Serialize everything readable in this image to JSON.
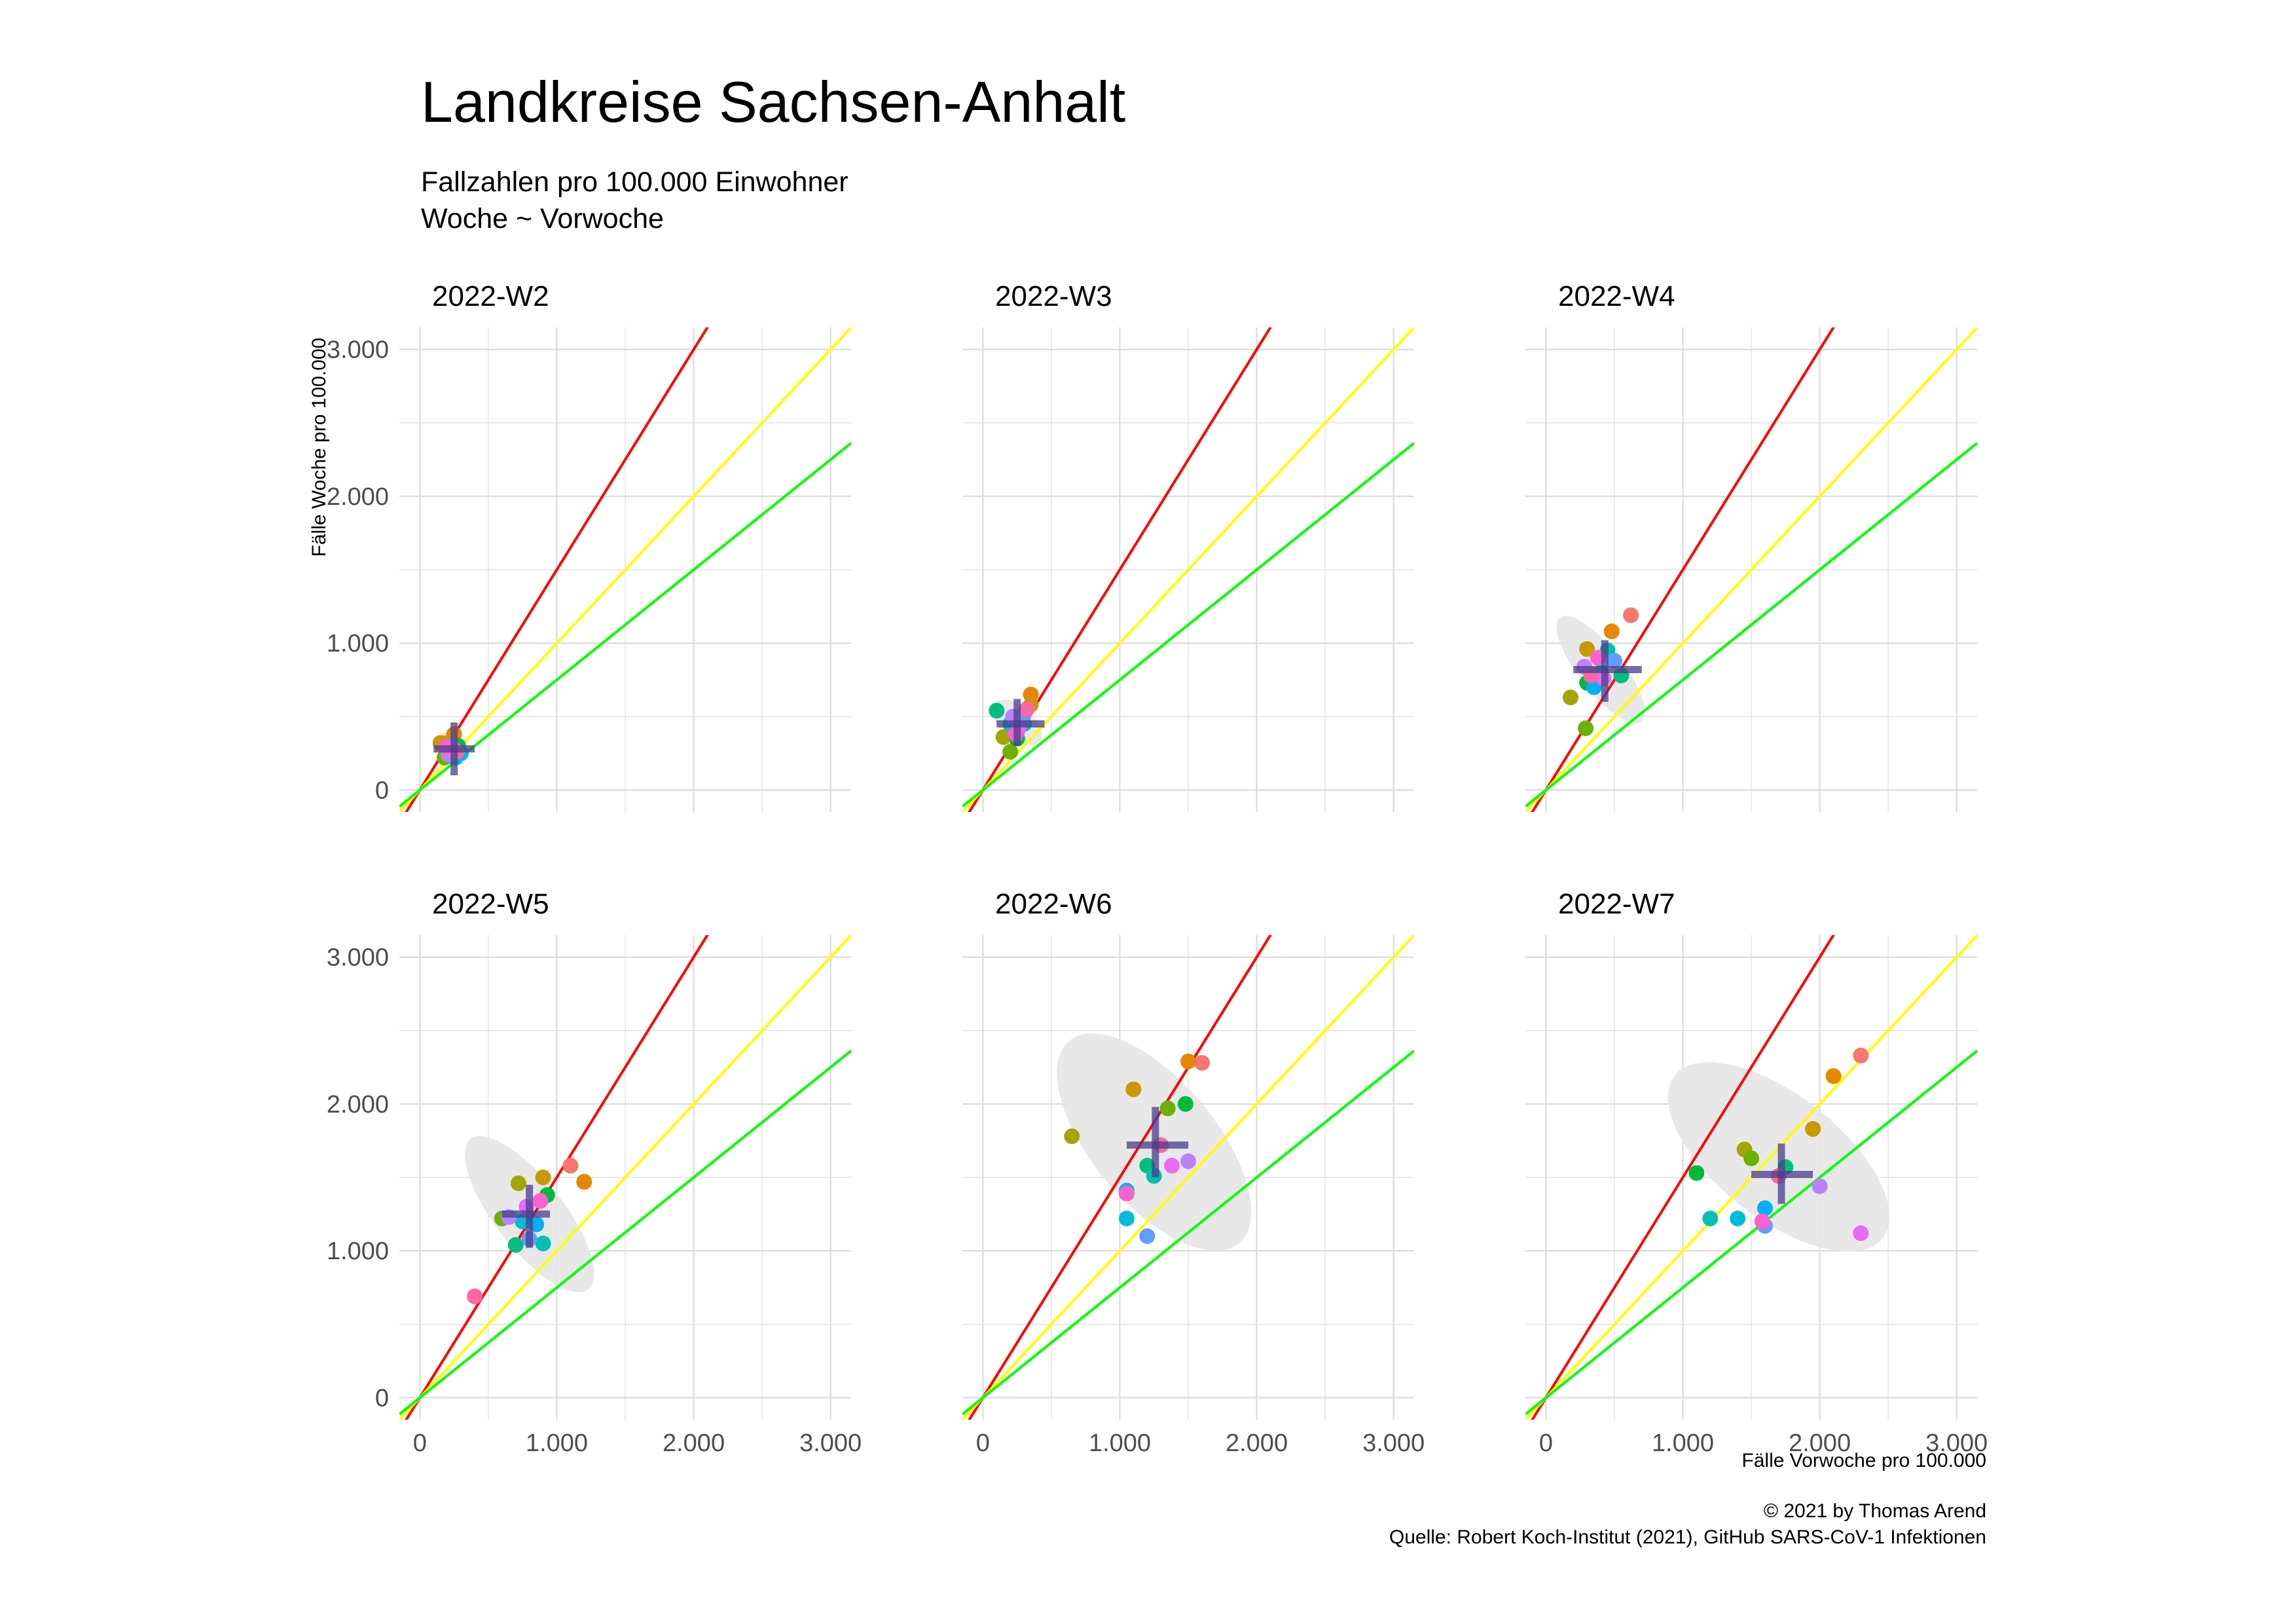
{
  "title": "Landkreise Sachsen-Anhalt",
  "subtitle": [
    "Fallzahlen pro 100.000 Einwohner",
    "Woche ~ Vorwoche"
  ],
  "caption": [
    "© 2021 by Thomas Arend",
    "Quelle: Robert Koch-Institut (2021), GitHub SARS-CoV-1 Infektionen"
  ],
  "colors": {
    "red_line": "#ff0000",
    "yellow_line": "#ffff00",
    "green_line": "#00ff00",
    "cross": "#483d8b",
    "ellipse": "#e6e6e6",
    "grid": "#dcdcdc",
    "points": [
      "#f8766d",
      "#e58700",
      "#c99800",
      "#a3a500",
      "#6bb100",
      "#00ba38",
      "#00bf7d",
      "#00c0af",
      "#00bcd8",
      "#00b0f6",
      "#619cff",
      "#b983ff",
      "#e76bf3",
      "#fd61d1",
      "#ff67a4"
    ]
  },
  "chart_data": {
    "type": "scatter",
    "xlabel": "Fälle Vorwoche pro 100.000",
    "ylabel": "Fälle Woche pro 100.000",
    "xlim": [
      -150,
      3150
    ],
    "ylim": [
      -150,
      3150
    ],
    "x_ticks": [
      0,
      1000,
      2000,
      3000
    ],
    "x_tick_labels": [
      "0",
      "1.000",
      "2.000",
      "3.000"
    ],
    "y_ticks": [
      0,
      1000,
      2000,
      3000
    ],
    "y_tick_labels": [
      "0",
      "1.000",
      "2.000",
      "3.000"
    ],
    "reference_lines": [
      {
        "color": "red",
        "slope": 1.5
      },
      {
        "color": "yellow",
        "slope": 1.0
      },
      {
        "color": "green",
        "slope": 0.75
      }
    ],
    "panels": [
      {
        "label": "2022-W2",
        "points": [
          [
            200,
            320
          ],
          [
            250,
            380
          ],
          [
            150,
            320
          ],
          [
            220,
            250
          ],
          [
            180,
            220
          ],
          [
            280,
            300
          ],
          [
            240,
            260
          ],
          [
            200,
            280
          ],
          [
            300,
            250
          ],
          [
            260,
            220
          ],
          [
            230,
            300
          ],
          [
            210,
            240
          ],
          [
            250,
            270
          ],
          [
            190,
            290
          ],
          [
            270,
            260
          ]
        ],
        "mean": [
          250,
          280
        ],
        "cross_x": [
          100,
          400
        ],
        "cross_y": [
          100,
          460
        ],
        "ellipse": {
          "cx": 230,
          "cy": 280,
          "rx": 90,
          "ry": 130,
          "angle": 45
        }
      },
      {
        "label": "2022-W3",
        "points": [
          [
            300,
            520
          ],
          [
            350,
            650
          ],
          [
            350,
            580
          ],
          [
            150,
            360
          ],
          [
            200,
            260
          ],
          [
            250,
            350
          ],
          [
            100,
            540
          ],
          [
            300,
            450
          ],
          [
            200,
            450
          ],
          [
            250,
            400
          ],
          [
            280,
            480
          ],
          [
            220,
            500
          ],
          [
            260,
            420
          ],
          [
            240,
            380
          ],
          [
            320,
            550
          ]
        ],
        "mean": [
          250,
          450
        ],
        "cross_x": [
          100,
          450
        ],
        "cross_y": [
          300,
          620
        ],
        "ellipse": {
          "cx": 250,
          "cy": 460,
          "rx": 120,
          "ry": 200,
          "angle": 50
        }
      },
      {
        "label": "2022-W4",
        "points": [
          [
            620,
            1190
          ],
          [
            480,
            1080
          ],
          [
            300,
            960
          ],
          [
            180,
            630
          ],
          [
            290,
            420
          ],
          [
            300,
            730
          ],
          [
            550,
            780
          ],
          [
            450,
            950
          ],
          [
            400,
            800
          ],
          [
            350,
            700
          ],
          [
            500,
            880
          ],
          [
            280,
            840
          ],
          [
            420,
            760
          ],
          [
            380,
            900
          ],
          [
            330,
            780
          ]
        ],
        "mean": [
          430,
          820
        ],
        "cross_x": [
          200,
          700
        ],
        "cross_y": [
          600,
          1020
        ],
        "ellipse": {
          "cx": 400,
          "cy": 820,
          "rx": 160,
          "ry": 450,
          "angle": 38
        }
      },
      {
        "label": "2022-W5",
        "points": [
          [
            1100,
            1580
          ],
          [
            1200,
            1470
          ],
          [
            900,
            1500
          ],
          [
            720,
            1460
          ],
          [
            600,
            1220
          ],
          [
            930,
            1380
          ],
          [
            700,
            1040
          ],
          [
            900,
            1050
          ],
          [
            750,
            1200
          ],
          [
            850,
            1180
          ],
          [
            800,
            1080
          ],
          [
            650,
            1230
          ],
          [
            780,
            1300
          ],
          [
            880,
            1340
          ],
          [
            400,
            690
          ]
        ],
        "mean": [
          800,
          1250
        ],
        "cross_x": [
          600,
          950
        ],
        "cross_y": [
          1020,
          1450
        ],
        "ellipse": {
          "cx": 800,
          "cy": 1250,
          "rx": 250,
          "ry": 650,
          "angle": 38
        }
      },
      {
        "label": "2022-W6",
        "points": [
          [
            1600,
            2280
          ],
          [
            1500,
            2290
          ],
          [
            1100,
            2100
          ],
          [
            650,
            1780
          ],
          [
            1350,
            1970
          ],
          [
            1480,
            2000
          ],
          [
            1200,
            1580
          ],
          [
            1250,
            1510
          ],
          [
            1050,
            1220
          ],
          [
            1050,
            1410
          ],
          [
            1200,
            1100
          ],
          [
            1500,
            1610
          ],
          [
            1380,
            1580
          ],
          [
            1050,
            1390
          ],
          [
            1300,
            1720
          ]
        ],
        "mean": [
          1260,
          1720
        ],
        "cross_x": [
          1050,
          1500
        ],
        "cross_y": [
          1500,
          1980
        ],
        "ellipse": {
          "cx": 1250,
          "cy": 1740,
          "rx": 450,
          "ry": 900,
          "angle": 40
        }
      },
      {
        "label": "2022-W7",
        "points": [
          [
            2300,
            2330
          ],
          [
            2100,
            2190
          ],
          [
            1950,
            1830
          ],
          [
            1450,
            1690
          ],
          [
            1500,
            1630
          ],
          [
            1100,
            1530
          ],
          [
            1750,
            1570
          ],
          [
            1200,
            1220
          ],
          [
            1400,
            1220
          ],
          [
            1600,
            1290
          ],
          [
            1600,
            1170
          ],
          [
            2000,
            1440
          ],
          [
            2300,
            1120
          ],
          [
            1580,
            1200
          ],
          [
            1700,
            1510
          ]
        ],
        "mean": [
          1720,
          1520
        ],
        "cross_x": [
          1500,
          1950
        ],
        "cross_y": [
          1320,
          1730
        ],
        "ellipse": {
          "cx": 1700,
          "cy": 1640,
          "rx": 450,
          "ry": 900,
          "angle": 52
        }
      }
    ]
  }
}
